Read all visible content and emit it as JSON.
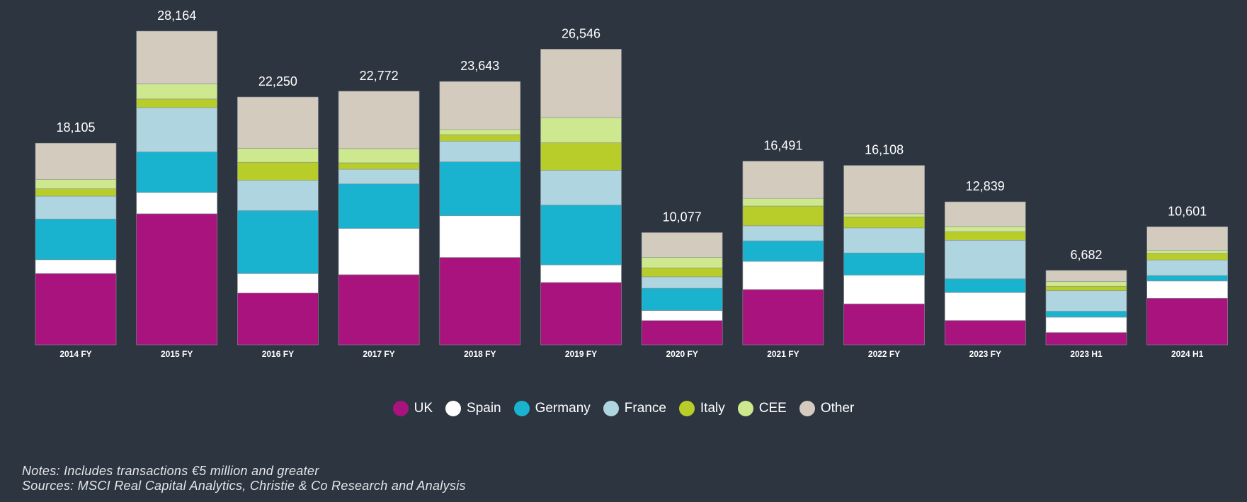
{
  "chart_data": {
    "type": "bar",
    "stacked": true,
    "categories": [
      "2014 FY",
      "2015 FY",
      "2016 FY",
      "2017 FY",
      "2018 FY",
      "2019 FY",
      "2020 FY",
      "2021 FY",
      "2022 FY",
      "2023 FY",
      "2023 H1",
      "2024 H1"
    ],
    "totals": [
      "18,105",
      "28,164",
      "22,250",
      "22,772",
      "23,643",
      "26,546",
      "10,077",
      "16,491",
      "16,108",
      "12,839",
      "6,682",
      "10,601"
    ],
    "series": [
      {
        "name": "UK",
        "color": "#a8137e",
        "values": [
          6400,
          11770,
          4650,
          6300,
          7850,
          5600,
          2180,
          4970,
          3680,
          2190,
          1110,
          4180
        ]
      },
      {
        "name": "Spain",
        "color": "#ffffff",
        "values": [
          1240,
          1910,
          1750,
          4150,
          3740,
          1580,
          900,
          2520,
          2570,
          2500,
          1370,
          1550
        ]
      },
      {
        "name": "Germany",
        "color": "#1ab3cf",
        "values": [
          3660,
          3640,
          5650,
          4000,
          4840,
          5370,
          2000,
          1850,
          2000,
          1240,
          540,
          490
        ]
      },
      {
        "name": "France",
        "color": "#afd5e0",
        "values": [
          2050,
          3980,
          2730,
          1310,
          1860,
          3120,
          1030,
          1350,
          2250,
          3460,
          1840,
          1400
        ]
      },
      {
        "name": "Italy",
        "color": "#b8cd2a",
        "values": [
          660,
          770,
          1610,
          580,
          570,
          2470,
          800,
          1770,
          980,
          770,
          400,
          590
        ]
      },
      {
        "name": "CEE",
        "color": "#cde88e",
        "values": [
          850,
          1360,
          1260,
          1280,
          480,
          2270,
          950,
          690,
          290,
          460,
          430,
          290
        ]
      },
      {
        "name": "Other",
        "color": "#d3cbbd",
        "values": [
          3245,
          4734,
          4600,
          5152,
          4303,
          6136,
          2217,
          3341,
          4338,
          2219,
          992,
          2101
        ]
      }
    ],
    "xlabel": "",
    "ylabel": "",
    "ylim": [
      0,
      28164
    ],
    "grid": false,
    "legend": "bottom-center"
  },
  "notes": {
    "line1": "Notes: Includes transactions €5 million and greater",
    "line2": "Sources: MSCI Real Capital Analytics, Christie & Co Research and Analysis"
  }
}
